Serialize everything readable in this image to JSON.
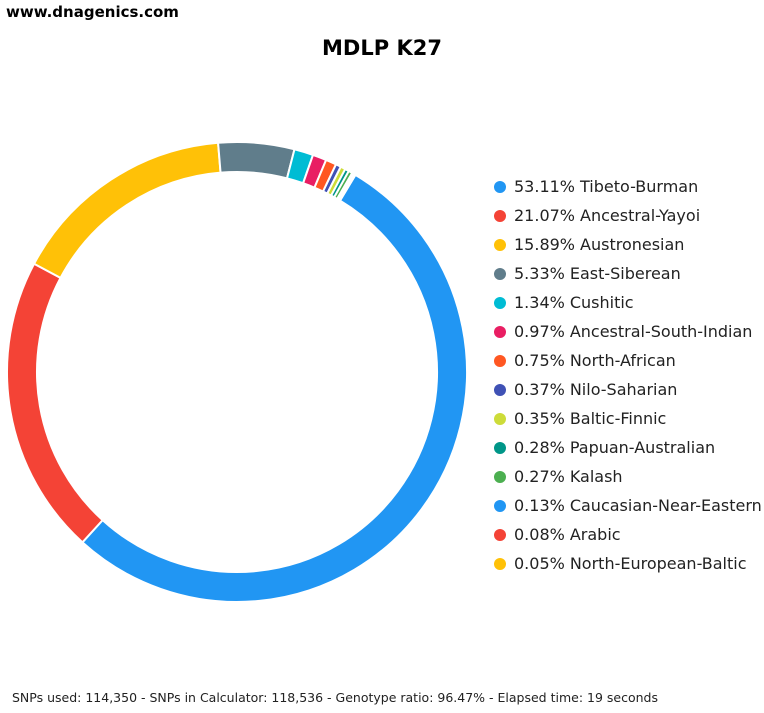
{
  "site": "www.dnagenics.com",
  "footer": "SNPs used: 114,350 - SNPs in Calculator: 118,536 - Genotype ratio: 96.47% - Elapsed time: 19 seconds",
  "chart_data": {
    "type": "pie",
    "style": "donut",
    "title": "MDLP K27",
    "legend_position": "right",
    "categories": [
      "Tibeto-Burman",
      "Ancestral-Yayoi",
      "Austronesian",
      "East-Siberean",
      "Cushitic",
      "Ancestral-South-Indian",
      "North-African",
      "Nilo-Saharian",
      "Baltic-Finnic",
      "Papuan-Australian",
      "Kalash",
      "Caucasian-Near-Eastern",
      "Arabic",
      "North-European-Baltic"
    ],
    "values": [
      53.11,
      21.07,
      15.89,
      5.33,
      1.34,
      0.97,
      0.75,
      0.37,
      0.35,
      0.28,
      0.27,
      0.13,
      0.08,
      0.05
    ],
    "labels": [
      "53.11%",
      "21.07%",
      "15.89%",
      "5.33%",
      "1.34%",
      "0.97%",
      "0.75%",
      "0.37%",
      "0.35%",
      "0.28%",
      "0.27%",
      "0.13%",
      "0.08%",
      "0.05%"
    ],
    "colors": [
      "#2196f3",
      "#f44336",
      "#ffc107",
      "#607d8b",
      "#00bcd4",
      "#e91e63",
      "#ff5722",
      "#3f51b5",
      "#cddc39",
      "#009688",
      "#4caf50",
      "#2196f3",
      "#f44336",
      "#ffc107"
    ]
  }
}
